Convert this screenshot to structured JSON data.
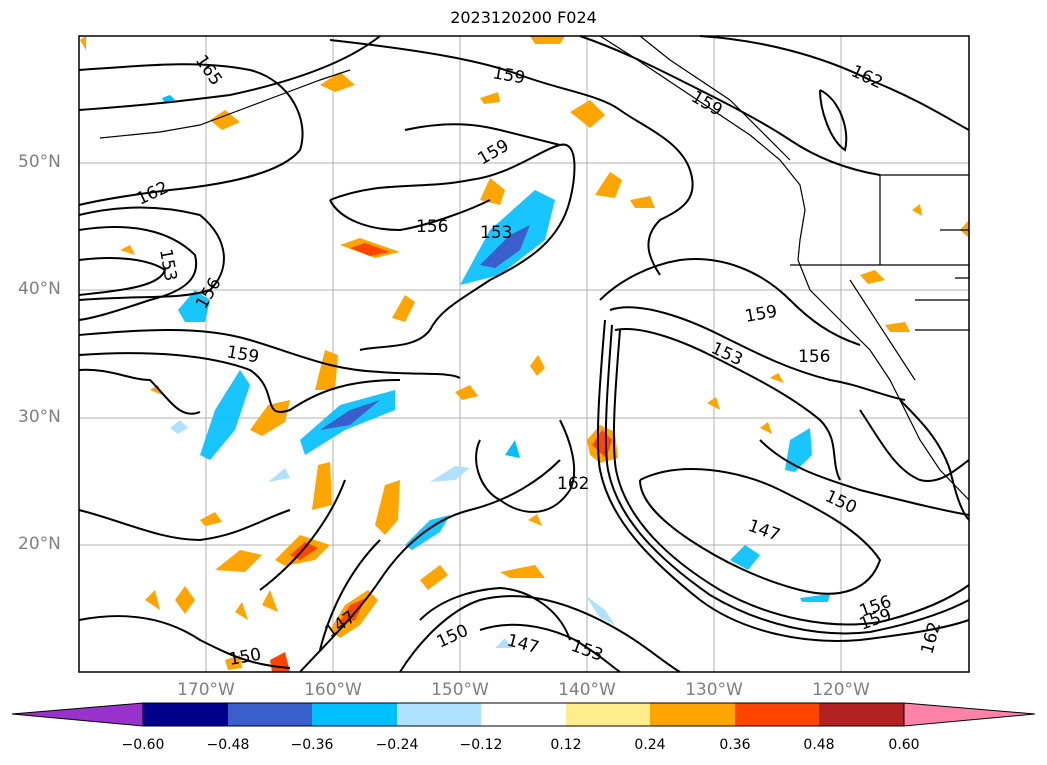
{
  "title": "2023120200 F024",
  "map": {
    "lat_labels": [
      "50°N",
      "40°N",
      "30°N",
      "20°N"
    ],
    "lon_labels": [
      "170°W",
      "160°W",
      "150°W",
      "140°W",
      "130°W",
      "120°W"
    ],
    "contour_labels": [
      "165",
      "159",
      "159",
      "162",
      "162",
      "159",
      "156",
      "153",
      "153",
      "156",
      "159",
      "159",
      "156",
      "153",
      "162",
      "150",
      "147",
      "147",
      "150",
      "147",
      "153",
      "156",
      "159",
      "162",
      "150"
    ]
  },
  "colorbar": {
    "ticks": [
      "−0.60",
      "−0.48",
      "−0.36",
      "−0.24",
      "−0.12",
      "0.12",
      "0.24",
      "0.36",
      "0.48",
      "0.60"
    ],
    "colors": [
      "#9932cc",
      "#00008b",
      "#3a5fcd",
      "#00bfff",
      "#b0e2ff",
      "#ffffff",
      "#ffec8b",
      "#ffa500",
      "#ff4500",
      "#b22222",
      "#ff82ab"
    ]
  }
}
